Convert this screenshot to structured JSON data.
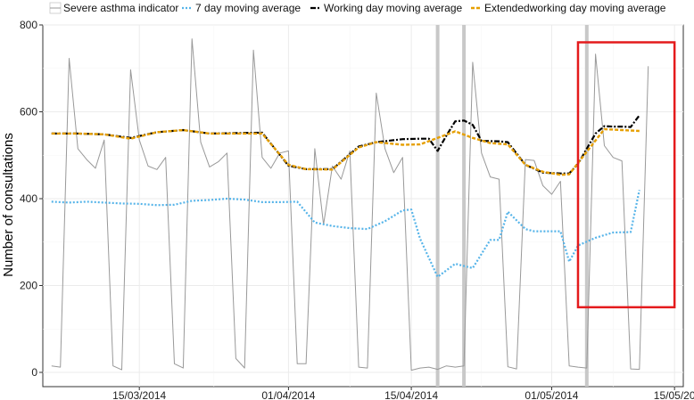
{
  "chart_data": {
    "type": "line",
    "title": "",
    "xlabel": "",
    "ylabel": "Number of consultations",
    "ylim": [
      0,
      800
    ],
    "y_ticks": [
      0,
      200,
      400,
      600,
      800
    ],
    "y_tick_labels": [
      "0",
      "200",
      "400",
      "600",
      "800"
    ],
    "x_axis": {
      "start": "2014-03-04",
      "end": "2014-05-16",
      "ticks": [
        "2014-03-15",
        "2014-04-01",
        "2014-04-15",
        "2014-05-01",
        "2014-05-15"
      ],
      "tick_labels": [
        "15/03/2014",
        "01/04/2014",
        "15/04/2014",
        "01/05/2014",
        "15/05/20"
      ]
    },
    "grid": true,
    "legend_position": "top",
    "colors": {
      "severe": "#999999",
      "seven_day": "#56b4e9",
      "working_day": "#000000",
      "extended": "#e69f00",
      "bank_holiday": "#c8c8c8",
      "highlight_box": "#e41a1c"
    },
    "bank_holidays": [
      "2014-04-18",
      "2014-04-21",
      "2014-05-05"
    ],
    "highlight": {
      "from": "2014-05-04",
      "to": "2014-05-15",
      "y_from": 150,
      "y_to": 760
    },
    "series": [
      {
        "name": "Severe asthma indicator",
        "key": "severe",
        "dates": [
          "2014-03-05",
          "2014-03-06",
          "2014-03-07",
          "2014-03-08",
          "2014-03-09",
          "2014-03-10",
          "2014-03-11",
          "2014-03-12",
          "2014-03-13",
          "2014-03-14",
          "2014-03-15",
          "2014-03-16",
          "2014-03-17",
          "2014-03-18",
          "2014-03-19",
          "2014-03-20",
          "2014-03-21",
          "2014-03-22",
          "2014-03-23",
          "2014-03-24",
          "2014-03-25",
          "2014-03-26",
          "2014-03-27",
          "2014-03-28",
          "2014-03-29",
          "2014-03-30",
          "2014-03-31",
          "2014-04-01",
          "2014-04-02",
          "2014-04-03",
          "2014-04-04",
          "2014-04-05",
          "2014-04-06",
          "2014-04-07",
          "2014-04-08",
          "2014-04-09",
          "2014-04-10",
          "2014-04-11",
          "2014-04-12",
          "2014-04-13",
          "2014-04-14",
          "2014-04-15",
          "2014-04-16",
          "2014-04-17",
          "2014-04-18",
          "2014-04-19",
          "2014-04-20",
          "2014-04-21",
          "2014-04-22",
          "2014-04-23",
          "2014-04-24",
          "2014-04-25",
          "2014-04-26",
          "2014-04-27",
          "2014-04-28",
          "2014-04-29",
          "2014-04-30",
          "2014-05-01",
          "2014-05-02",
          "2014-05-03",
          "2014-05-04",
          "2014-05-05",
          "2014-05-06",
          "2014-05-07",
          "2014-05-08",
          "2014-05-09",
          "2014-05-10",
          "2014-05-11",
          "2014-05-12"
        ],
        "values": [
          15,
          12,
          723,
          515,
          490,
          470,
          535,
          15,
          6,
          697,
          535,
          475,
          467,
          495,
          20,
          10,
          768,
          530,
          473,
          485,
          505,
          32,
          10,
          742,
          495,
          470,
          505,
          510,
          20,
          20,
          515,
          340,
          475,
          445,
          510,
          12,
          10,
          643,
          515,
          460,
          495,
          5,
          10,
          12,
          7,
          15,
          12,
          15,
          714,
          505,
          450,
          445,
          13,
          8,
          490,
          488,
          430,
          410,
          440,
          15,
          12,
          10,
          733,
          522,
          495,
          487,
          8,
          7,
          705
        ]
      },
      {
        "name": "7 day moving average",
        "key": "seven_day",
        "dates": [
          "2014-03-05",
          "2014-03-07",
          "2014-03-09",
          "2014-03-11",
          "2014-03-13",
          "2014-03-15",
          "2014-03-17",
          "2014-03-19",
          "2014-03-21",
          "2014-03-23",
          "2014-03-25",
          "2014-03-27",
          "2014-03-29",
          "2014-03-31",
          "2014-04-02",
          "2014-04-04",
          "2014-04-06",
          "2014-04-08",
          "2014-04-10",
          "2014-04-12",
          "2014-04-14",
          "2014-04-15",
          "2014-04-16",
          "2014-04-18",
          "2014-04-20",
          "2014-04-22",
          "2014-04-24",
          "2014-04-25",
          "2014-04-26",
          "2014-04-28",
          "2014-04-29",
          "2014-04-30",
          "2014-05-02",
          "2014-05-03",
          "2014-05-04",
          "2014-05-06",
          "2014-05-08",
          "2014-05-10",
          "2014-05-11"
        ],
        "values": [
          393,
          391,
          393,
          391,
          389,
          388,
          385,
          386,
          395,
          397,
          400,
          398,
          392,
          392,
          393,
          345,
          337,
          332,
          330,
          348,
          373,
          375,
          308,
          220,
          250,
          240,
          305,
          305,
          370,
          330,
          325,
          325,
          325,
          255,
          292,
          310,
          322,
          323,
          420
        ]
      },
      {
        "name": "Working day moving average",
        "key": "working_day",
        "dates": [
          "2014-03-05",
          "2014-03-08",
          "2014-03-11",
          "2014-03-14",
          "2014-03-17",
          "2014-03-20",
          "2014-03-23",
          "2014-03-26",
          "2014-03-29",
          "2014-04-01",
          "2014-04-03",
          "2014-04-06",
          "2014-04-09",
          "2014-04-11",
          "2014-04-14",
          "2014-04-16",
          "2014-04-17",
          "2014-04-18",
          "2014-04-19",
          "2014-04-20",
          "2014-04-21",
          "2014-04-22",
          "2014-04-23",
          "2014-04-25",
          "2014-04-26",
          "2014-04-28",
          "2014-04-30",
          "2014-05-02",
          "2014-05-03",
          "2014-05-04",
          "2014-05-06",
          "2014-05-07",
          "2014-05-08",
          "2014-05-09",
          "2014-05-10",
          "2014-05-11"
        ],
        "values": [
          550,
          550,
          548,
          540,
          553,
          558,
          550,
          551,
          552,
          476,
          468,
          468,
          520,
          530,
          537,
          538,
          538,
          510,
          545,
          578,
          580,
          570,
          533,
          532,
          530,
          478,
          460,
          458,
          458,
          480,
          550,
          567,
          566,
          566,
          565,
          592
        ]
      },
      {
        "name": "Extendedworking day moving average",
        "key": "extended",
        "dates": [
          "2014-03-05",
          "2014-03-08",
          "2014-03-11",
          "2014-03-14",
          "2014-03-17",
          "2014-03-20",
          "2014-03-23",
          "2014-03-26",
          "2014-03-29",
          "2014-04-01",
          "2014-04-03",
          "2014-04-06",
          "2014-04-09",
          "2014-04-11",
          "2014-04-14",
          "2014-04-16",
          "2014-04-18",
          "2014-04-20",
          "2014-04-22",
          "2014-04-24",
          "2014-04-26",
          "2014-04-28",
          "2014-04-30",
          "2014-05-02",
          "2014-05-03",
          "2014-05-05",
          "2014-05-07",
          "2014-05-09",
          "2014-05-11"
        ],
        "values": [
          550,
          550,
          548,
          538,
          553,
          558,
          550,
          550,
          550,
          478,
          468,
          467,
          518,
          530,
          524,
          525,
          540,
          555,
          540,
          528,
          525,
          478,
          462,
          455,
          456,
          508,
          560,
          558,
          556
        ]
      }
    ]
  }
}
